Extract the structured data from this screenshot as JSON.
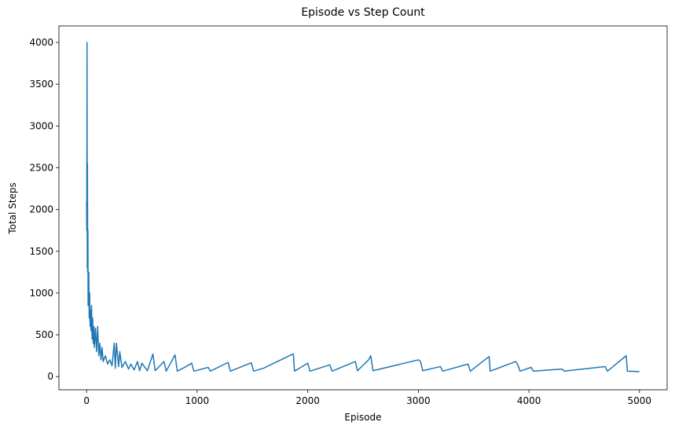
{
  "chart_data": {
    "type": "line",
    "title": "Episode vs Step Count",
    "x_label": "Episode",
    "y_label": "Total Steps",
    "color": "#1f77b4",
    "x": [
      0,
      2,
      4,
      6,
      8,
      10,
      12,
      14,
      16,
      18,
      20,
      24,
      28,
      32,
      36,
      40,
      45,
      50,
      55,
      60,
      65,
      70,
      80,
      90,
      100,
      110,
      120,
      130,
      140,
      150,
      170,
      190,
      210,
      230,
      250,
      260,
      270,
      290,
      300,
      320,
      350,
      380,
      400,
      430,
      460,
      480,
      500,
      550,
      600,
      620,
      700,
      720,
      800,
      820,
      900,
      950,
      970,
      1100,
      1120,
      1280,
      1300,
      1490,
      1510,
      1600,
      1850,
      1870,
      1880,
      2000,
      2020,
      2200,
      2220,
      2430,
      2450,
      2550,
      2570,
      2590,
      3000,
      3020,
      3040,
      3200,
      3220,
      3450,
      3470,
      3640,
      3650,
      3880,
      3900,
      3920,
      4020,
      4040,
      4300,
      4320,
      4690,
      4710,
      4880,
      4890,
      5000
    ],
    "values": [
      2100,
      1750,
      4000,
      1300,
      2550,
      1250,
      1750,
      850,
      1200,
      900,
      1250,
      700,
      1000,
      600,
      800,
      550,
      850,
      450,
      700,
      400,
      600,
      350,
      580,
      300,
      600,
      250,
      400,
      200,
      350,
      180,
      250,
      150,
      200,
      130,
      400,
      100,
      400,
      120,
      300,
      110,
      180,
      90,
      150,
      80,
      180,
      70,
      160,
      70,
      270,
      70,
      180,
      65,
      260,
      65,
      120,
      160,
      65,
      110,
      65,
      170,
      65,
      165,
      65,
      100,
      260,
      270,
      65,
      160,
      65,
      140,
      65,
      180,
      70,
      200,
      250,
      70,
      200,
      180,
      70,
      120,
      65,
      150,
      65,
      240,
      65,
      180,
      140,
      65,
      110,
      65,
      90,
      65,
      120,
      65,
      250,
      65,
      60
    ],
    "xlim": [
      -250,
      5250
    ],
    "ylim": [
      -158,
      4198
    ],
    "xticks": [
      0,
      1000,
      2000,
      3000,
      4000,
      5000
    ],
    "yticks": [
      0,
      500,
      1000,
      1500,
      2000,
      2500,
      3000,
      3500,
      4000
    ]
  }
}
